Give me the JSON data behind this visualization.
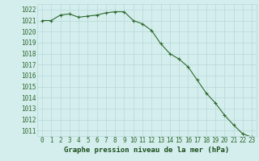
{
  "x": [
    0,
    1,
    2,
    3,
    4,
    5,
    6,
    7,
    8,
    9,
    10,
    11,
    12,
    13,
    14,
    15,
    16,
    17,
    18,
    19,
    20,
    21,
    22,
    23
  ],
  "y": [
    1021.0,
    1021.0,
    1021.5,
    1021.6,
    1021.3,
    1021.4,
    1021.5,
    1021.7,
    1021.8,
    1021.8,
    1021.0,
    1020.7,
    1020.1,
    1018.9,
    1018.0,
    1017.5,
    1016.8,
    1015.6,
    1014.4,
    1013.5,
    1012.4,
    1011.5,
    1010.7,
    1010.4
  ],
  "xlim": [
    -0.5,
    23.5
  ],
  "ylim": [
    1010.5,
    1022.5
  ],
  "yticks": [
    1011,
    1012,
    1013,
    1014,
    1015,
    1016,
    1017,
    1018,
    1019,
    1020,
    1021,
    1022
  ],
  "xticks": [
    0,
    1,
    2,
    3,
    4,
    5,
    6,
    7,
    8,
    9,
    10,
    11,
    12,
    13,
    14,
    15,
    16,
    17,
    18,
    19,
    20,
    21,
    22,
    23
  ],
  "xlabel": "Graphe pression niveau de la mer (hPa)",
  "line_color": "#2d6a2d",
  "marker": "+",
  "marker_size": 3,
  "linewidth": 0.8,
  "markeredgewidth": 0.8,
  "bg_color": "#d4eded",
  "grid_color": "#b8d8d8",
  "tick_color": "#2d6a2d",
  "label_color": "#1a4d1a",
  "xlabel_fontsize": 6.5,
  "tick_fontsize": 5.5
}
